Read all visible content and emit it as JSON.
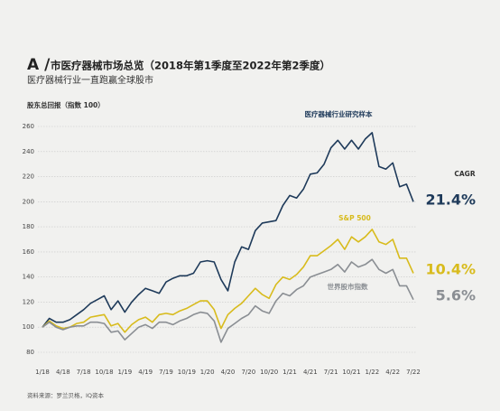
{
  "chart_data": {
    "type": "line",
    "title_prefix": "A /",
    "title": "市医疗器械市场总览（2018年第1季度至2022年第2季度）",
    "subtitle": "医疗器械行业一直跑赢全球股市",
    "y_label": "股东总回报（指数 100）",
    "cagr_title": "CAGR",
    "source": "资料来源：罗兰贝格，IQ资本",
    "categories": [
      "1/18",
      null,
      null,
      "4/18",
      null,
      null,
      "7/18",
      null,
      null,
      "10/18",
      null,
      null,
      "1/19",
      null,
      null,
      "4/19",
      null,
      null,
      "7/19",
      null,
      null,
      "10/19",
      null,
      null,
      "1/20",
      null,
      null,
      "4/20",
      null,
      null,
      "7/20",
      null,
      null,
      "10/20",
      null,
      null,
      "1/21",
      null,
      null,
      "4/21",
      null,
      null,
      "7/21",
      null,
      null,
      "10/21",
      null,
      null,
      "1/22",
      null,
      null,
      "4/22",
      null,
      null,
      "7/22"
    ],
    "ylim": [
      80,
      260
    ],
    "yticks": [
      80,
      100,
      120,
      140,
      160,
      180,
      200,
      220,
      240,
      260
    ],
    "grid": true,
    "series": [
      {
        "name": "医疗器械行业研究样本",
        "color": "#1e3a5a",
        "cagr": 21.4,
        "cagr_label": "21.4%",
        "values": [
          100,
          107,
          104,
          104,
          106,
          110,
          114,
          119,
          122,
          125,
          114,
          121,
          112,
          120,
          126,
          131,
          129,
          127,
          136,
          139,
          141,
          141,
          143,
          152,
          153,
          152,
          138,
          129,
          152,
          164,
          162,
          177,
          183,
          184,
          185,
          197,
          205,
          203,
          210,
          222,
          223,
          230,
          243,
          249,
          242,
          249,
          242,
          250,
          255,
          228,
          226,
          231,
          212,
          214,
          200
        ]
      },
      {
        "name": "S&P 500",
        "color": "#d8bb1c",
        "cagr": 10.4,
        "cagr_label": "10.4%",
        "values": [
          100,
          105,
          101,
          99,
          100,
          103,
          104,
          108,
          109,
          110,
          101,
          103,
          96,
          102,
          106,
          108,
          104,
          110,
          111,
          110,
          113,
          115,
          118,
          121,
          121,
          114,
          99,
          110,
          115,
          119,
          125,
          131,
          126,
          123,
          134,
          140,
          138,
          142,
          148,
          157,
          157,
          161,
          165,
          170,
          162,
          172,
          168,
          172,
          178,
          168,
          166,
          170,
          155,
          155,
          143
        ]
      },
      {
        "name": "世界股市指数",
        "color": "#8a8e93",
        "cagr": 5.6,
        "cagr_label": "5.6%",
        "values": [
          100,
          104,
          100,
          98,
          100,
          101,
          101,
          104,
          104,
          103,
          96,
          97,
          90,
          95,
          100,
          102,
          99,
          104,
          104,
          102,
          105,
          107,
          110,
          112,
          111,
          105,
          88,
          99,
          103,
          107,
          110,
          117,
          113,
          111,
          121,
          127,
          125,
          130,
          133,
          140,
          142,
          144,
          146,
          150,
          144,
          152,
          148,
          150,
          154,
          146,
          143,
          146,
          133,
          133,
          122
        ]
      }
    ]
  }
}
